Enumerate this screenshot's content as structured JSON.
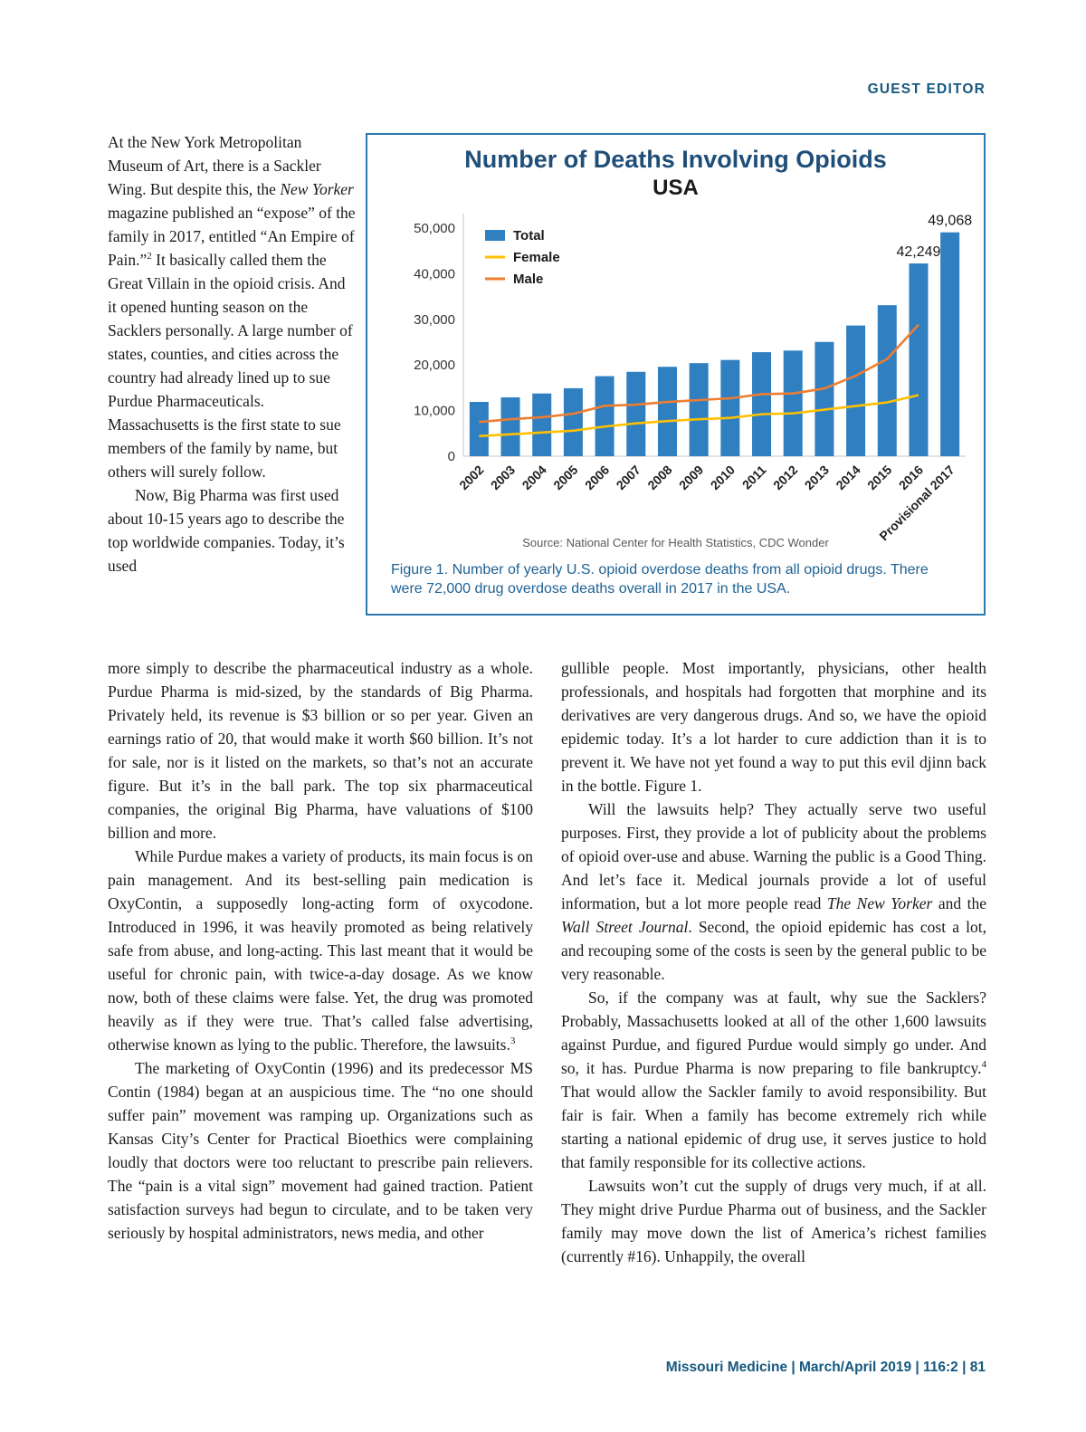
{
  "page": {
    "header_label": "GUEST EDITOR",
    "footer_text": "Missouri Medicine | March/April 2019 | 116:2 | 81",
    "accent_color": "#15587f"
  },
  "figure": {
    "source": "Source: National Center for Health Statistics, CDC Wonder",
    "caption": "Figure 1. Number of yearly U.S. opioid overdose deaths from all opioid drugs. There were 72,000 drug overdose deaths overall in 2017 in the USA."
  },
  "chart_data": {
    "type": "bar",
    "title": "Number of Deaths Involving Opioids",
    "subtitle": "USA",
    "categories": [
      "2002",
      "2003",
      "2004",
      "2005",
      "2006",
      "2007",
      "2008",
      "2009",
      "2010",
      "2011",
      "2012",
      "2013",
      "2014",
      "2015",
      "2016",
      "Provisional 2017"
    ],
    "series": [
      {
        "name": "Total",
        "type": "bar",
        "color": "#2f7fc1",
        "values": [
          11900,
          12900,
          13750,
          14900,
          17550,
          18500,
          19600,
          20400,
          21100,
          22800,
          23150,
          25050,
          28650,
          33100,
          42249,
          49068
        ]
      },
      {
        "name": "Female",
        "type": "line",
        "color": "#ffc000",
        "values": [
          4400,
          4800,
          5200,
          5600,
          6500,
          7200,
          7700,
          8100,
          8400,
          9200,
          9400,
          10200,
          11000,
          11800,
          13400
        ]
      },
      {
        "name": "Male",
        "type": "line",
        "color": "#ed7d31",
        "values": [
          7500,
          8100,
          8550,
          9300,
          11050,
          11300,
          11900,
          12300,
          12700,
          13600,
          13750,
          14850,
          17650,
          21300,
          28850
        ]
      }
    ],
    "ylim": [
      0,
      50000
    ],
    "yticks": [
      0,
      10000,
      20000,
      30000,
      40000,
      50000
    ],
    "ytick_labels": [
      "0",
      "10,000",
      "20,000",
      "30,000",
      "40,000",
      "50,000"
    ],
    "data_labels": [
      {
        "category_index": 14,
        "text": "42,249"
      },
      {
        "category_index": 15,
        "text": "49,068"
      }
    ],
    "legend_position": "top-left-inside",
    "grid": false,
    "xlabel": "",
    "ylabel": ""
  },
  "article": {
    "intro": [
      {
        "indent": false,
        "runs": [
          {
            "t": "At the New York Metropolitan Museum of Art, there is a Sackler Wing.  But despite this, the "
          },
          {
            "t": "New Yorker",
            "s": "i"
          },
          {
            "t": " magazine published an “expose” of the family in 2017, entitled “An Empire of Pain.”"
          },
          {
            "t": "2",
            "s": "sup"
          },
          {
            "t": "  It basically called them the Great Villain in the opioid crisis.  And it opened hunting season on the Sacklers personally.  A large number of states, counties, and cities across the country had already lined up to sue Purdue Pharmaceuticals. Massachusetts is the first state to sue members of the family by name, but others will surely follow."
          }
        ]
      },
      {
        "indent": true,
        "runs": [
          {
            "t": "Now, Big Pharma was first used about 10-15 years ago to describe the top worldwide companies.  Today, it’s used"
          }
        ]
      }
    ],
    "left_column": [
      {
        "indent": false,
        "runs": [
          {
            "t": "more simply to describe the pharmaceutical industry as a whole.  Purdue Pharma is mid-sized, by the standards of Big Pharma.  Privately held, its revenue is $3 billion or so per year.  Given an earnings ratio of 20, that would make it worth $60 billion.  It’s not for sale, nor is it listed on the markets, so that’s not an accurate figure.  But it’s in the ball park.  The top six pharmaceutical companies, the original Big Pharma, have valuations of $100 billion and more."
          }
        ]
      },
      {
        "indent": true,
        "runs": [
          {
            "t": "While Purdue makes a variety of products, its main focus is on pain management.  And its best-selling pain medication is OxyContin, a supposedly long-acting form of oxycodone.  Introduced in 1996, it was heavily promoted as being relatively safe from abuse, and long-acting.  This last meant that it would be useful for chronic pain, with twice-a-day dosage.  As we know now, both of these claims were false.  Yet, the drug was promoted heavily as if they were true.  That’s called false advertising, otherwise known as lying to the public.  Therefore, the lawsuits."
          },
          {
            "t": "3",
            "s": "sup"
          }
        ]
      },
      {
        "indent": true,
        "runs": [
          {
            "t": "The marketing of OxyContin (1996) and its predecessor MS Contin (1984) began at an auspicious time.  The “no one should suffer pain” movement was ramping up.  Organizations such as Kansas City’s Center for Practical Bioethics were complaining loudly that doctors were too reluctant to prescribe pain relievers.  The “pain is a vital sign” movement had gained traction.  Patient satisfaction surveys had begun to circulate, and to be taken very seriously by hospital administrators, news media, and other"
          }
        ]
      }
    ],
    "right_column": [
      {
        "indent": false,
        "runs": [
          {
            "t": "gullible people.  Most importantly, physicians, other health professionals, and hospitals had forgotten that morphine and its derivatives are very dangerous drugs.  And so, we have the opioid epidemic today.  It’s a lot harder to cure addiction than it is to prevent it.   We have not yet found a way to put this evil djinn back in the bottle. Figure 1."
          }
        ]
      },
      {
        "indent": true,
        "runs": [
          {
            "t": "Will the lawsuits help?  They actually serve two useful purposes.  First, they provide a lot of publicity about the problems of opioid over-use and abuse.  Warning the public is a Good Thing.  And let’s face it.  Medical journals provide a lot of useful information, but a lot more people read "
          },
          {
            "t": "The New Yorker",
            "s": "i"
          },
          {
            "t": " and the "
          },
          {
            "t": "Wall Street Journal",
            "s": "i"
          },
          {
            "t": ".  Second, the opioid epidemic has cost a lot, and recouping some of the costs is seen by the general public to be very reasonable."
          }
        ]
      },
      {
        "indent": true,
        "runs": [
          {
            "t": "So, if the company was at fault, why sue the Sacklers? Probably, Massachusetts looked at all of the other 1,600 lawsuits against Purdue, and figured Purdue would simply go under.  And so, it has.   Purdue Pharma is now preparing to file bankruptcy."
          },
          {
            "t": "4",
            "s": "sup"
          },
          {
            "t": "   That would allow the Sackler family to avoid responsibility.  But fair is fair.  When a family has become extremely rich while starting a national epidemic of drug use, it serves justice to hold that family responsible for its collective actions."
          }
        ]
      },
      {
        "indent": true,
        "runs": [
          {
            "t": "Lawsuits won’t cut the supply of drugs  very much, if at all.  They might drive Purdue Pharma out of business, and the Sackler family may move down the list of America’s richest families (currently #16).   Unhappily, the overall"
          }
        ]
      }
    ]
  }
}
